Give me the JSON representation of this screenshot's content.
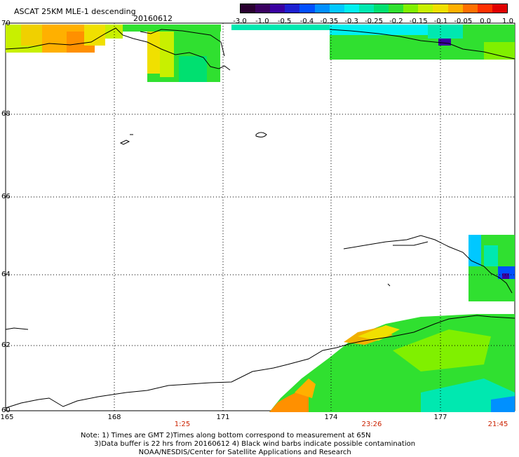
{
  "header": {
    "title": "ASCAT 25KM MLE-1 descending",
    "date": "20160612"
  },
  "colorbar": {
    "colors": [
      "#2a0030",
      "#3a0060",
      "#3a00a0",
      "#1e20d0",
      "#0050ff",
      "#0090ff",
      "#00c8ff",
      "#00f0f0",
      "#00e8b0",
      "#00e070",
      "#30e030",
      "#80f000",
      "#c8f000",
      "#f0e000",
      "#ffb000",
      "#ff7000",
      "#ff3000",
      "#e00000"
    ],
    "labels": [
      "-3.0",
      "-1.0",
      "-0.5",
      "-0.4",
      "-0.35",
      "-0.3",
      "-0.25",
      "-0.2",
      "-0.15",
      "-0.1",
      "-0.05",
      "0.0",
      "1.0"
    ]
  },
  "axes": {
    "lat_labels": [
      "70",
      "68",
      "66",
      "64",
      "62",
      "60"
    ],
    "lon_labels": [
      "165",
      "168",
      "171",
      "174",
      "177"
    ],
    "time_labels": [
      "1:25",
      "23:26",
      "21:45"
    ]
  },
  "notes": [
    "Note: 1) Times are GMT 2)Times along bottom correspond to measurement at 65N",
    "      3)Data buffer is 22 hrs from 20160612 4) Black wind barbs indicate possible contamination",
    "                          NOAA/NESDIS/Center for Satellite Applications and Research"
  ]
}
